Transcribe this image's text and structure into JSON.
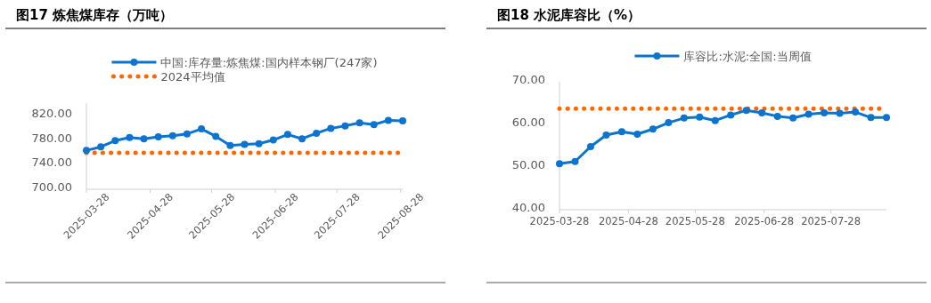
{
  "chart_data": [
    {
      "type": "line",
      "title": "图17 炼焦煤库存（万吨）",
      "marker": "circle",
      "legend": "top",
      "x": [
        "2025-03-28",
        "2025-04-04",
        "2025-04-11",
        "2025-04-18",
        "2025-04-25",
        "2025-05-02",
        "2025-05-09",
        "2025-05-16",
        "2025-05-23",
        "2025-05-30",
        "2025-06-06",
        "2025-06-13",
        "2025-06-20",
        "2025-06-27",
        "2025-07-04",
        "2025-07-11",
        "2025-07-18",
        "2025-07-25",
        "2025-08-01",
        "2025-08-08",
        "2025-08-15",
        "2025-08-22",
        "2025-08-29"
      ],
      "series": [
        {
          "name": "中国:库存量:炼焦煤:国内样本钢厂(247家)",
          "color": "#0b74d1",
          "values": [
            763,
            769,
            779,
            784,
            782,
            785,
            787,
            790,
            798,
            786,
            771,
            773,
            774,
            780,
            789,
            782,
            791,
            799,
            803,
            808,
            805,
            812,
            811
          ]
        }
      ],
      "ref_lines": [
        {
          "axis": "y",
          "value": 759,
          "label": "2024平均值",
          "color": "#ff6600",
          "line_style": "dotted"
        }
      ],
      "xlim": [
        "2025-03-28",
        "2025-08-29"
      ],
      "xticks": [
        "2025-03-28",
        "2025-04-28",
        "2025-05-28",
        "2025-06-28",
        "2025-07-28",
        "2025-08-28"
      ],
      "ylim": [
        700,
        840
      ],
      "yticks": [
        {
          "value": 700,
          "label": "700.00"
        },
        {
          "value": 740,
          "label": "740.00"
        },
        {
          "value": 780,
          "label": "780.00"
        },
        {
          "value": 820,
          "label": "820.00"
        }
      ]
    },
    {
      "type": "line",
      "title": "图18 水泥库容比（%）",
      "marker": "circle",
      "legend": "top",
      "x": [
        "2025-03-28",
        "2025-04-04",
        "2025-04-11",
        "2025-04-18",
        "2025-04-25",
        "2025-05-02",
        "2025-05-09",
        "2025-05-16",
        "2025-05-23",
        "2025-05-30",
        "2025-06-06",
        "2025-06-13",
        "2025-06-20",
        "2025-06-27",
        "2025-07-04",
        "2025-07-11",
        "2025-07-18",
        "2025-07-25",
        "2025-08-01",
        "2025-08-08",
        "2025-08-15",
        "2025-08-22"
      ],
      "series": [
        {
          "name": "库容比:水泥:全国:当周值",
          "color": "#0b74d1",
          "values": [
            50.8,
            51.3,
            54.8,
            57.5,
            58.3,
            57.7,
            58.9,
            60.4,
            61.5,
            61.7,
            60.9,
            62.2,
            63.3,
            62.7,
            61.9,
            61.5,
            62.4,
            62.7,
            62.6,
            62.9,
            61.6,
            61.6
          ]
        }
      ],
      "ref_lines": [
        {
          "axis": "y",
          "value": 63.7,
          "color": "#ff6600",
          "line_style": "dotted"
        }
      ],
      "xlim": [
        "2025-03-28",
        "2025-08-22"
      ],
      "xticks": [
        "2025-03-28",
        "2025-04-28",
        "2025-05-28",
        "2025-06-28",
        "2025-07-28"
      ],
      "ylim": [
        40,
        70
      ],
      "yticks": [
        {
          "value": 40,
          "label": "40.00"
        },
        {
          "value": 50,
          "label": "50.00"
        },
        {
          "value": 60,
          "label": "60.00"
        },
        {
          "value": 70,
          "label": "70.00"
        }
      ]
    }
  ]
}
